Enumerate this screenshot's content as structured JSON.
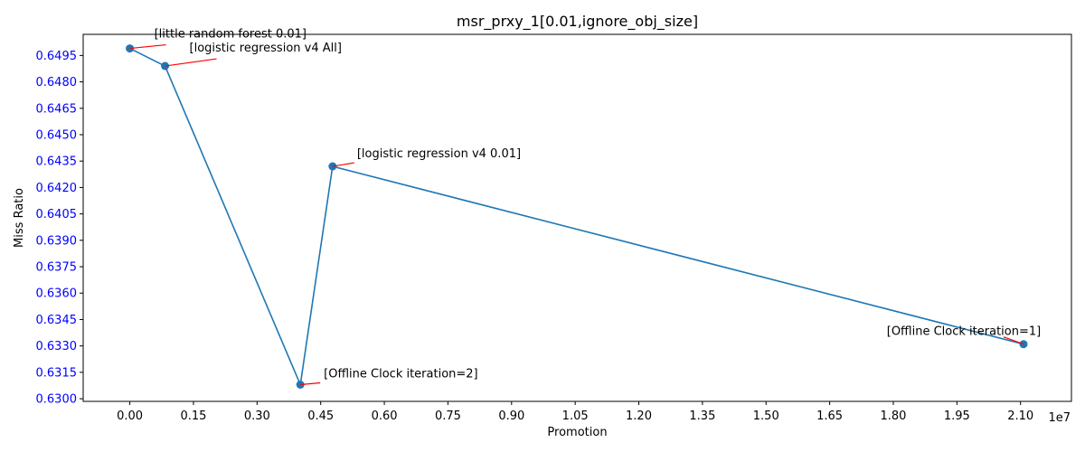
{
  "chart_data": {
    "type": "line",
    "title": "msr_prxy_1[0.01,ignore_obj_size]",
    "xlabel": "Promotion",
    "ylabel": "Miss Ratio",
    "x_offset_label": "1e7",
    "xlim": [
      -0.11,
      2.22
    ],
    "ylim": [
      0.62985,
      0.6507
    ],
    "x_ticks": [
      0.0,
      0.15,
      0.3,
      0.45,
      0.6,
      0.75,
      0.9,
      1.05,
      1.2,
      1.35,
      1.5,
      1.65,
      1.8,
      1.95,
      2.1
    ],
    "x_tick_labels": [
      "0.00",
      "0.15",
      "0.30",
      "0.45",
      "0.60",
      "0.75",
      "0.90",
      "1.05",
      "1.20",
      "1.35",
      "1.50",
      "1.65",
      "1.80",
      "1.95",
      "2.10"
    ],
    "y_ticks": [
      0.63,
      0.6315,
      0.633,
      0.6345,
      0.636,
      0.6375,
      0.639,
      0.6405,
      0.642,
      0.6435,
      0.645,
      0.6465,
      0.648,
      0.6495
    ],
    "y_tick_labels": [
      "0.6300",
      "0.6315",
      "0.6330",
      "0.6345",
      "0.6360",
      "0.6375",
      "0.6390",
      "0.6405",
      "0.6420",
      "0.6435",
      "0.6450",
      "0.6465",
      "0.6480",
      "0.6495"
    ],
    "y_tick_color": "#0000ff",
    "grid": false,
    "series": [
      {
        "color": "#1f77b4",
        "points": [
          {
            "x": 0.0,
            "y": 0.6499,
            "label": "[little random forest 0.01]"
          },
          {
            "x": 0.083,
            "y": 0.6489,
            "label": "[logistic regression v4 All]"
          },
          {
            "x": 0.402,
            "y": 0.6308,
            "label": "[Offline Clock iteration=2]"
          },
          {
            "x": 0.478,
            "y": 0.6432,
            "label": "[logistic regression v4 0.01]"
          },
          {
            "x": 2.107,
            "y": 0.6331,
            "label": "[Offline Clock iteration=1]"
          }
        ]
      }
    ],
    "annotation_arrow_color": "#ff0000"
  }
}
